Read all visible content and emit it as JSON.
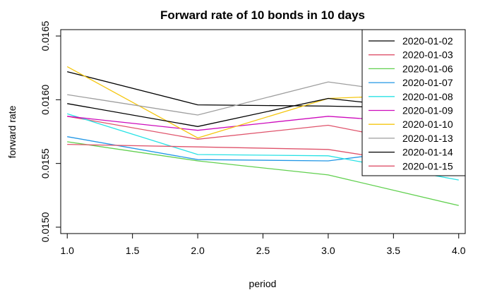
{
  "chart_data": {
    "type": "line",
    "title": "Forward rate of 10 bonds in 10 days",
    "xlabel": "period",
    "ylabel": "forward rate",
    "xlim": [
      0.95,
      4.05
    ],
    "ylim": [
      0.01495,
      0.01655
    ],
    "x_ticks": [
      "1.0",
      "1.5",
      "2.0",
      "2.5",
      "3.0",
      "3.5",
      "4.0"
    ],
    "y_ticks": [
      "0.0150",
      "0.0155",
      "0.0160",
      "0.0165"
    ],
    "grid": false,
    "legend_position": "top-right",
    "x": [
      1,
      2,
      3,
      4
    ],
    "series": [
      {
        "name": "2020-01-02",
        "color": "#000000",
        "values": [
          0.01622,
          0.01596,
          0.01595,
          0.01593
        ]
      },
      {
        "name": "2020-01-03",
        "color": "#df536b",
        "values": [
          0.01587,
          0.01569,
          0.0158,
          0.0156
        ]
      },
      {
        "name": "2020-01-06",
        "color": "#61d04f",
        "values": [
          0.01567,
          0.01552,
          0.01541,
          0.01517
        ]
      },
      {
        "name": "2020-01-07",
        "color": "#2297e6",
        "values": [
          0.01571,
          0.01553,
          0.01552,
          0.01565
        ]
      },
      {
        "name": "2020-01-08",
        "color": "#28e2e5",
        "values": [
          0.01589,
          0.01557,
          0.01556,
          0.01537
        ]
      },
      {
        "name": "2020-01-09",
        "color": "#cd0bbc",
        "values": [
          0.01587,
          0.01576,
          0.01587,
          0.0158
        ]
      },
      {
        "name": "2020-01-10",
        "color": "#f5c710",
        "values": [
          0.01626,
          0.0157,
          0.01601,
          0.01605
        ]
      },
      {
        "name": "2020-01-13",
        "color": "#9e9e9e",
        "values": [
          0.01604,
          0.01588,
          0.01614,
          0.016
        ]
      },
      {
        "name": "2020-01-14",
        "color": "#000000",
        "values": [
          0.01597,
          0.01579,
          0.01601,
          0.0159
        ]
      },
      {
        "name": "2020-01-15",
        "color": "#df536b",
        "values": [
          0.01565,
          0.01563,
          0.01561,
          0.01545
        ]
      }
    ]
  }
}
